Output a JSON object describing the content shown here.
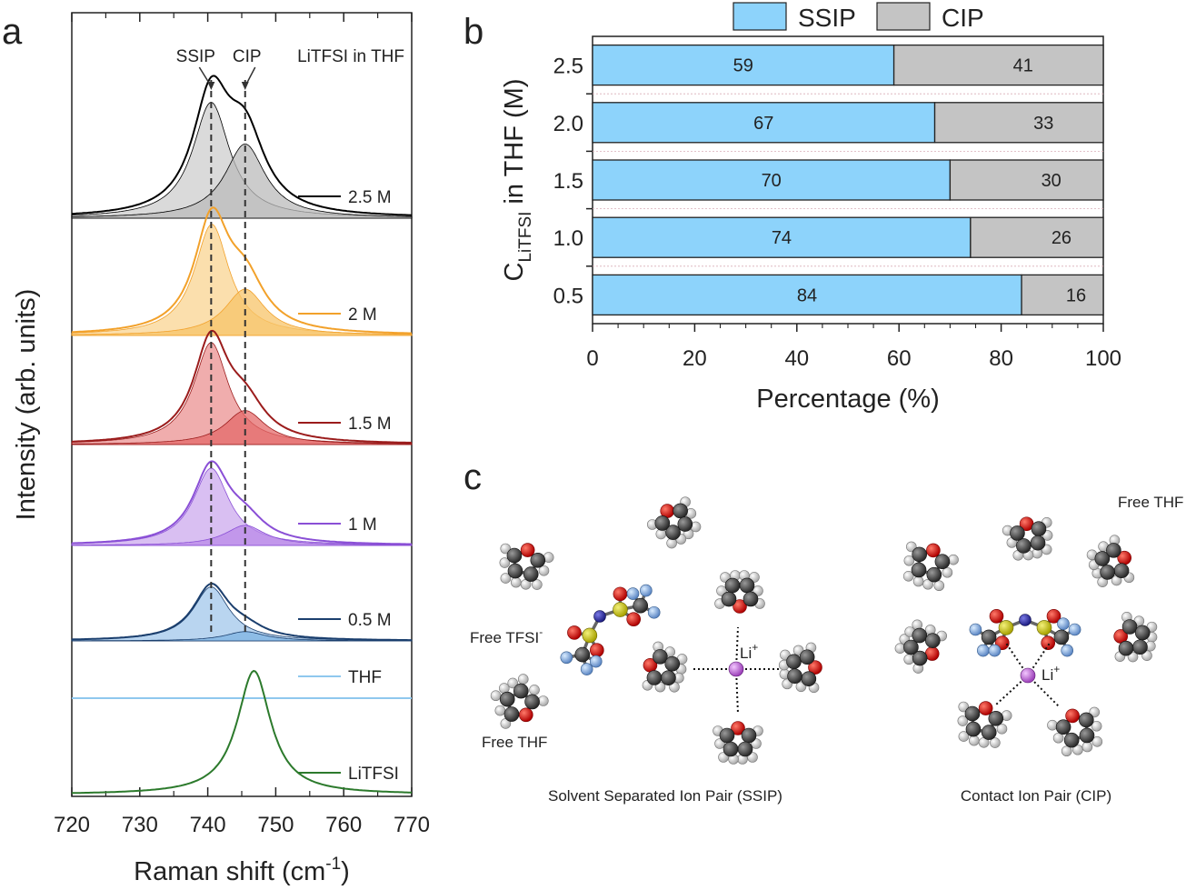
{
  "panel_labels": {
    "a": "a",
    "b": "b",
    "c": "c"
  },
  "chart_data": [
    {
      "type": "line",
      "panel": "a",
      "title": "LiTFSI in THF",
      "xlabel": "Raman shift (cm⁻¹)",
      "ylabel": "Intensity (arb. units)",
      "xlim": [
        720,
        770
      ],
      "xticks": [
        "720",
        "730",
        "740",
        "750",
        "760",
        "770"
      ],
      "reference_lines": [
        {
          "label": "SSIP",
          "x": 740.5
        },
        {
          "label": "CIP",
          "x": 745.5
        }
      ],
      "series": [
        {
          "name": "2.5 M",
          "color": "#000000",
          "fill": "#bbbbbb",
          "peaks": [
            {
              "center": 740.5,
              "height": 0.75,
              "width": 3.3
            },
            {
              "center": 745.5,
              "height": 0.48,
              "width": 3.6
            }
          ]
        },
        {
          "name": "2 M",
          "color": "#f2a12a",
          "fill": "#f7c46a",
          "peaks": [
            {
              "center": 740.6,
              "height": 0.72,
              "width": 3.1
            },
            {
              "center": 745.5,
              "height": 0.3,
              "width": 3.6
            }
          ]
        },
        {
          "name": "1.5 M",
          "color": "#9b1c1c",
          "fill": "#e46a6a",
          "peaks": [
            {
              "center": 740.5,
              "height": 0.66,
              "width": 3.1
            },
            {
              "center": 745.5,
              "height": 0.22,
              "width": 3.6
            }
          ]
        },
        {
          "name": "1 M",
          "color": "#8a4fd6",
          "fill": "#b98ae8",
          "peaks": [
            {
              "center": 740.5,
              "height": 0.5,
              "width": 3.2
            },
            {
              "center": 745.5,
              "height": 0.13,
              "width": 3.6
            }
          ]
        },
        {
          "name": "0.5 M",
          "color": "#1b3f6e",
          "fill": "#7fb3e3",
          "peaks": [
            {
              "center": 740.5,
              "height": 0.35,
              "width": 3.2
            },
            {
              "center": 745.5,
              "height": 0.06,
              "width": 3.6
            }
          ]
        },
        {
          "name": "THF",
          "color": "#8fc8ee",
          "fill": "none",
          "peaks": []
        },
        {
          "name": "LiTFSI",
          "color": "#2c7a2c",
          "fill": "none",
          "peaks": [
            {
              "center": 746.8,
              "height": 0.8,
              "width": 3.0
            }
          ]
        }
      ]
    },
    {
      "type": "bar",
      "panel": "b",
      "orientation": "horizontal",
      "stacked": true,
      "xlabel": "Percentage (%)",
      "ylabel_main": "C",
      "ylabel_sub": "LiTFSI",
      "ylabel_rest": " in THF (M)",
      "xlim": [
        0,
        100
      ],
      "xticks": [
        "0",
        "20",
        "40",
        "60",
        "80",
        "100"
      ],
      "categories": [
        "2.5",
        "2.0",
        "1.5",
        "1.0",
        "0.5"
      ],
      "legend": "top",
      "series": [
        {
          "name": "SSIP",
          "color": "#8dd3fb",
          "values": [
            59,
            67,
            70,
            74,
            84
          ]
        },
        {
          "name": "CIP",
          "color": "#c4c4c4",
          "values": [
            41,
            33,
            30,
            26,
            16
          ]
        }
      ]
    }
  ],
  "panel_c": {
    "ssip": {
      "caption": "Solvent Separated Ion Pair (SSIP)",
      "free_tfsi_label": "Free TFSI",
      "free_tfsi_sup": "-",
      "free_thf_label": "Free THF",
      "li_label": "Li",
      "li_sup": "+"
    },
    "cip": {
      "caption": "Contact Ion Pair (CIP)",
      "free_thf_label": "Free THF",
      "li_label": "Li",
      "li_sup": "+"
    }
  }
}
